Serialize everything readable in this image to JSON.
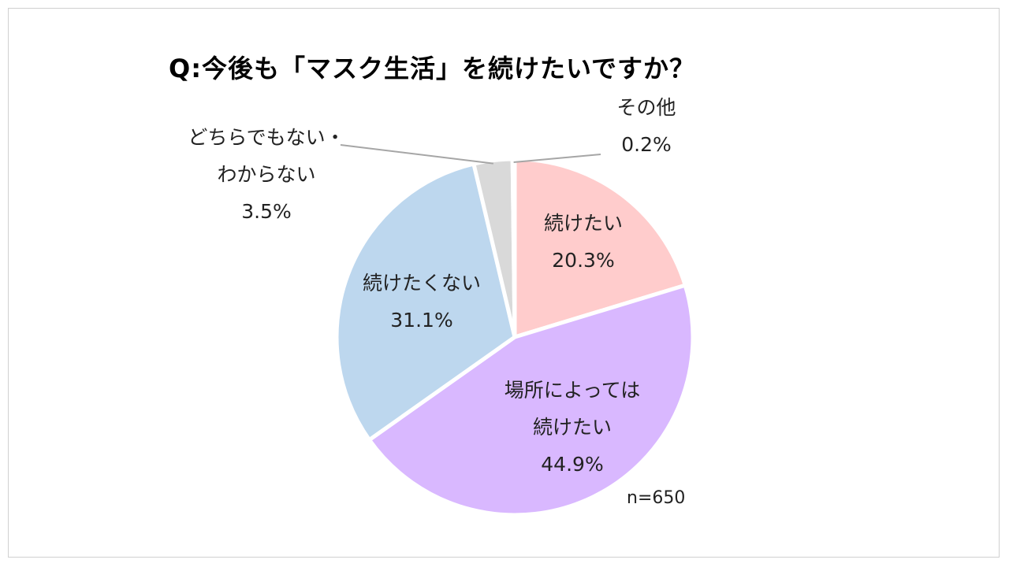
{
  "title": "Q:今後も「マスク生活」を続けたいですか？",
  "sample_note": "n=650",
  "chart_data": {
    "type": "pie",
    "title": "Q:今後も「マスク生活」を続けたいですか？",
    "slices": [
      {
        "label": "続けたい",
        "value": 20.3,
        "display": "20.3%",
        "color": "#FFCCCC"
      },
      {
        "label": "場所によっては続けたい",
        "value": 44.9,
        "display": "44.9%",
        "color": "#D9B8FF"
      },
      {
        "label": "続けたくない",
        "value": 31.1,
        "display": "31.1%",
        "color": "#BDD7EE"
      },
      {
        "label": "どちらでもない・わからない",
        "value": 3.5,
        "display": "3.5%",
        "color": "#D9D9D9"
      },
      {
        "label": "その他",
        "value": 0.2,
        "display": "0.2%",
        "color": "#ADADAD"
      }
    ]
  },
  "labels": {
    "s0": {
      "lines": [
        "続けたい"
      ],
      "pct": "20.3%"
    },
    "s1": {
      "lines": [
        "場所によっては",
        "続けたい"
      ],
      "pct": "44.9%"
    },
    "s2": {
      "lines": [
        "続けたくない"
      ],
      "pct": "31.1%"
    },
    "s3": {
      "lines": [
        "どちらでもない・",
        "わからない"
      ],
      "pct": "3.5%"
    },
    "s4": {
      "lines": [
        "その他"
      ],
      "pct": "0.2%"
    }
  }
}
